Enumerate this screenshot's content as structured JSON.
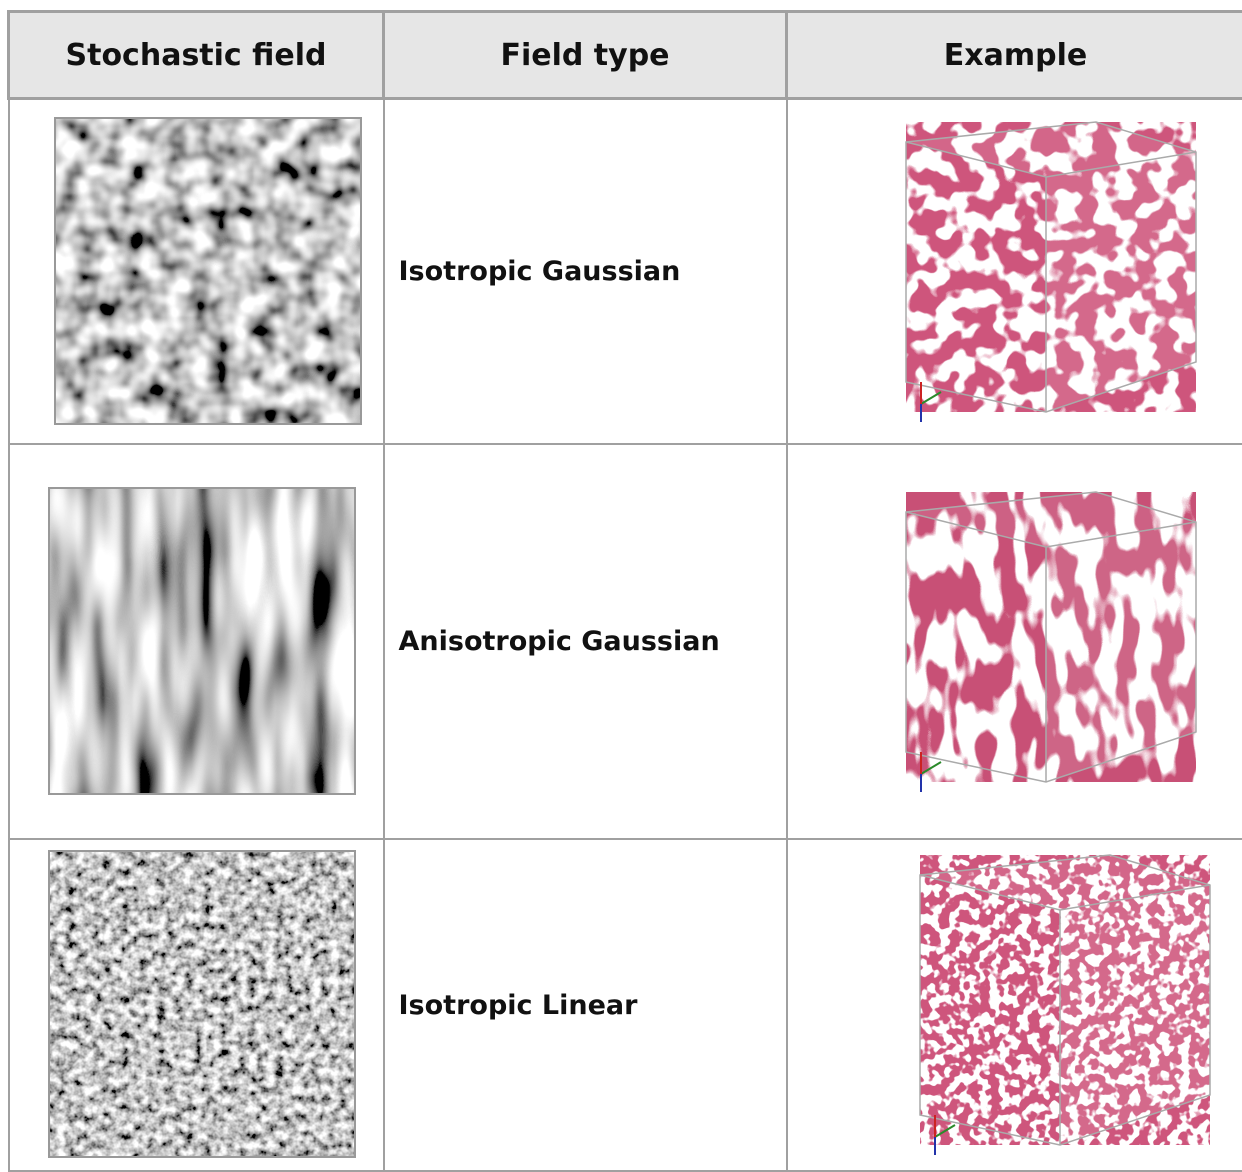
{
  "table": {
    "header": [
      "Stochastic field",
      "Field type",
      "Example"
    ],
    "rows": [
      {
        "field_type": "Isotropic Gaussian"
      },
      {
        "field_type": "Anisotropic Gaussian"
      },
      {
        "field_type": "Isotropic Linear"
      }
    ]
  }
}
